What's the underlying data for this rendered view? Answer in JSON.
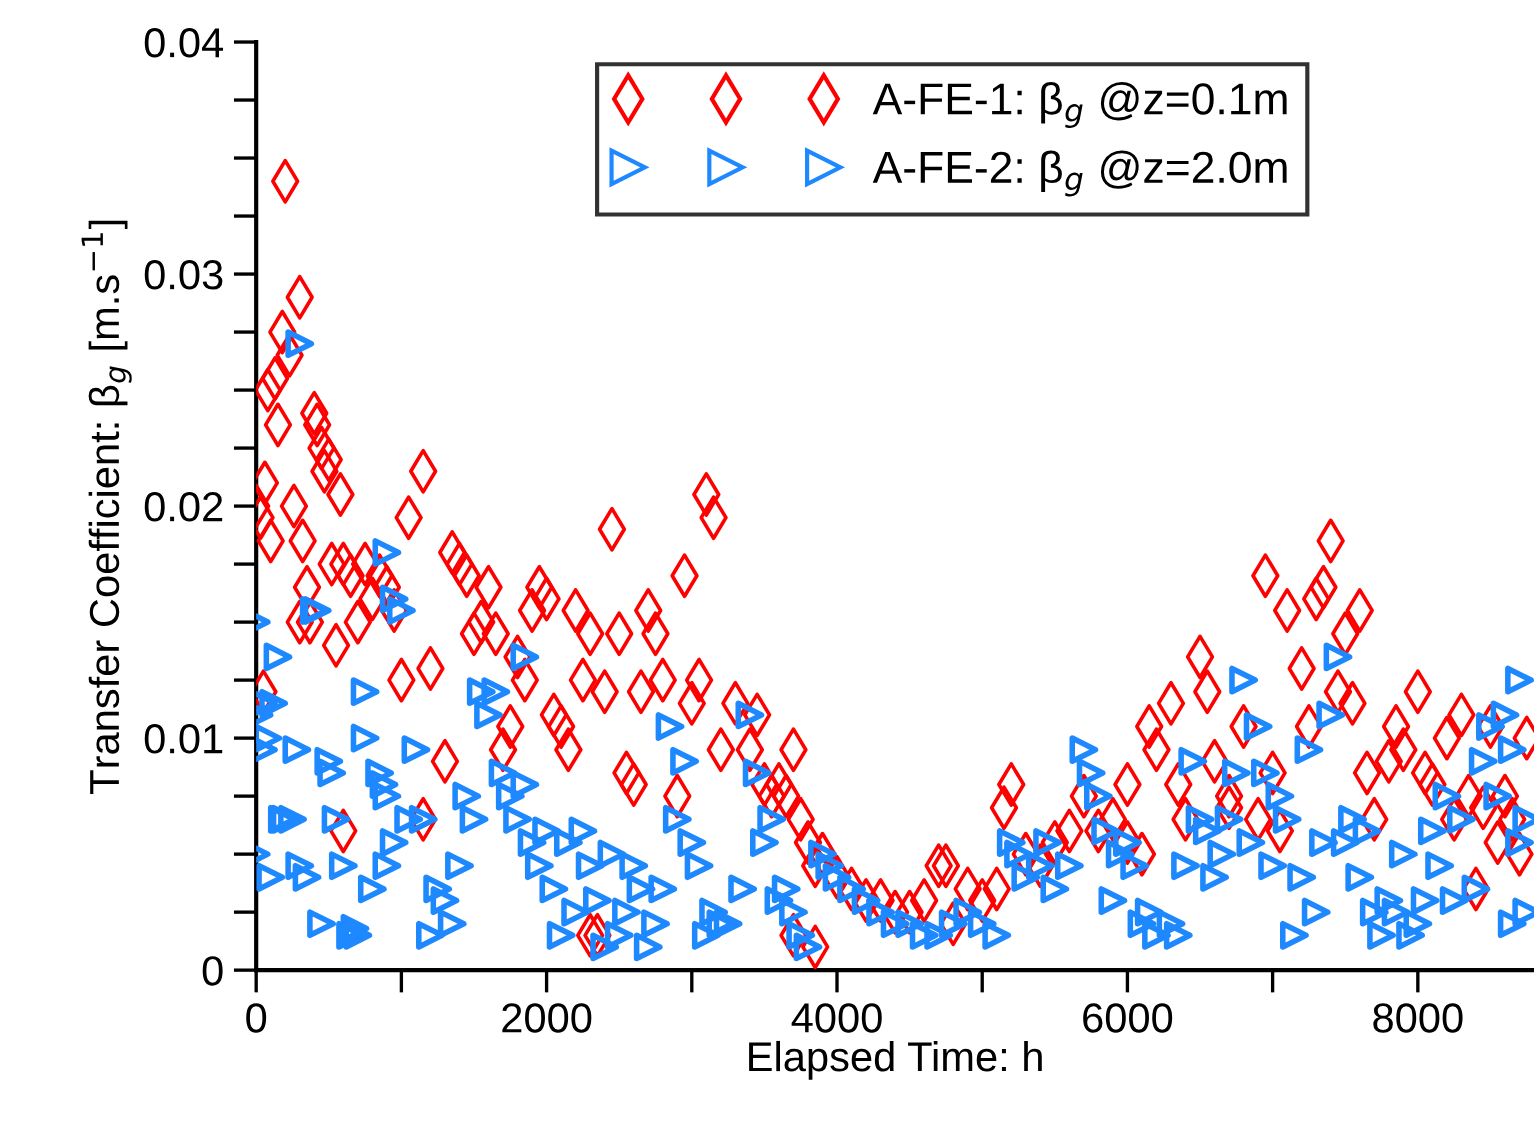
{
  "chart_data": {
    "type": "scatter",
    "xlabel": "Elapsed Time: h",
    "ylabel": "Transfer Coefficient: β$_{g}$ [m.s$^{−1}$]",
    "xlim": [
      0,
      8800
    ],
    "ylim": [
      0,
      0.04
    ],
    "xticks": [
      0,
      {
        "value": 1000,
        "label": null
      },
      2000,
      {
        "value": 3000,
        "label": null
      },
      4000,
      {
        "value": 5000,
        "label": null
      },
      6000,
      {
        "value": 7000,
        "label": null
      },
      8000
    ],
    "yticks": [
      0,
      {
        "value": 0.0025,
        "label": null
      },
      {
        "value": 0.005,
        "label": null
      },
      {
        "value": 0.0075,
        "label": null
      },
      0.01,
      {
        "value": 0.0125,
        "label": null
      },
      {
        "value": 0.015,
        "label": null
      },
      {
        "value": 0.0175,
        "label": null
      },
      0.02,
      {
        "value": 0.0225,
        "label": null
      },
      {
        "value": 0.025,
        "label": null
      },
      {
        "value": 0.0275,
        "label": null
      },
      0.03,
      {
        "value": 0.0325,
        "label": null
      },
      {
        "value": 0.035,
        "label": null
      },
      {
        "value": 0.0375,
        "label": null
      },
      0.04
    ],
    "grid": false,
    "legend": "top right",
    "series": [
      {
        "name": "A-FE-1: β$_{g}$ @z=0.1m",
        "color": "#ff0000",
        "marker": "diamond",
        "x": [
          0,
          30,
          60,
          80,
          100,
          130,
          150,
          180,
          200,
          230,
          260,
          300,
          320,
          350,
          370,
          400,
          420,
          450,
          470,
          500,
          520,
          550,
          580,
          600,
          650,
          700,
          750,
          800,
          850,
          900,
          950,
          1000,
          1050,
          1150,
          1200,
          1300,
          1350,
          1400,
          1450,
          1500,
          1550,
          1600,
          1650,
          1700,
          1750,
          1800,
          1850,
          1900,
          1950,
          2000,
          2050,
          2100,
          2150,
          2200,
          2250,
          2300,
          2400,
          2450,
          2500,
          2550,
          2600,
          2650,
          2700,
          2750,
          2800,
          2900,
          2950,
          3000,
          3050,
          3100,
          3150,
          3200,
          3300,
          3400,
          3450,
          3500,
          3550,
          3600,
          3650,
          3700,
          3750,
          3800,
          3850,
          3900,
          4000,
          4100,
          4200,
          4300,
          4400,
          4500,
          4600,
          4700,
          4750,
          4800,
          4900,
          5000,
          5100,
          5150,
          5200,
          5300,
          5400,
          5500,
          5600,
          5700,
          5800,
          5900,
          6000,
          6100,
          6150,
          6200,
          6300,
          6350,
          6400,
          6500,
          6550,
          6600,
          6700,
          6800,
          6900,
          6950,
          7000,
          7050,
          7100,
          7200,
          7250,
          7300,
          7350,
          7400,
          7450,
          7500,
          7550,
          7600,
          7650,
          7700,
          7800,
          7850,
          7900,
          8000,
          8050,
          8100,
          8200,
          8250,
          8300,
          8350,
          8400,
          8450,
          8500,
          8550,
          8600,
          8650,
          8700,
          8750,
          2350,
          3700,
          3850,
          2300,
          600,
          1150,
          6000,
          6700,
          300,
          50
        ],
        "values": [
          0.02,
          0.0195,
          0.021,
          0.025,
          0.0185,
          0.0255,
          0.0235,
          0.0275,
          0.034,
          0.0265,
          0.02,
          0.029,
          0.0185,
          0.0165,
          0.015,
          0.024,
          0.0235,
          0.0225,
          0.0215,
          0.022,
          0.0175,
          0.014,
          0.0205,
          0.0175,
          0.017,
          0.015,
          0.0175,
          0.016,
          0.017,
          0.0165,
          0.0155,
          0.0125,
          0.0195,
          0.0215,
          0.013,
          0.009,
          0.018,
          0.0175,
          0.017,
          0.0145,
          0.015,
          0.0165,
          0.0145,
          0.0095,
          0.0105,
          0.0135,
          0.0125,
          0.0155,
          0.0165,
          0.016,
          0.011,
          0.0105,
          0.0095,
          0.0155,
          0.0125,
          0.0145,
          0.012,
          0.019,
          0.0145,
          0.0085,
          0.008,
          0.012,
          0.0155,
          0.0145,
          0.0125,
          0.0075,
          0.017,
          0.0115,
          0.0125,
          0.0205,
          0.0195,
          0.0095,
          0.0115,
          0.0095,
          0.011,
          0.008,
          0.0075,
          0.008,
          0.0075,
          0.0095,
          0.0065,
          0.0055,
          0.0045,
          0.005,
          0.004,
          0.0035,
          0.003,
          0.003,
          0.0025,
          0.0025,
          0.003,
          0.0045,
          0.0045,
          0.002,
          0.0035,
          0.003,
          0.0035,
          0.007,
          0.008,
          0.005,
          0.0045,
          0.0055,
          0.006,
          0.0075,
          0.006,
          0.0065,
          0.008,
          0.005,
          0.0105,
          0.0095,
          0.0115,
          0.008,
          0.0065,
          0.0135,
          0.012,
          0.009,
          0.0075,
          0.0105,
          0.0065,
          0.017,
          0.0085,
          0.006,
          0.0155,
          0.013,
          0.0105,
          0.016,
          0.0165,
          0.0185,
          0.012,
          0.0145,
          0.0115,
          0.0155,
          0.0085,
          0.0065,
          0.009,
          0.0105,
          0.0095,
          0.012,
          0.0085,
          0.008,
          0.01,
          0.0065,
          0.011,
          0.0075,
          0.0035,
          0.007,
          0.0105,
          0.0055,
          0.0075,
          0.0065,
          0.005,
          0.01,
          0.0015,
          0.0015,
          0.001,
          0.0015,
          0.006,
          0.0065,
          0.0055,
          0.007,
          0.015,
          0.012
        ]
      },
      {
        "name": "A-FE-2: β$_{g}$ @z=2.0m",
        "color": "#1e88ff",
        "marker": "triangle",
        "x": [
          0,
          0,
          20,
          50,
          50,
          80,
          100,
          120,
          150,
          180,
          200,
          250,
          280,
          300,
          300,
          350,
          400,
          420,
          450,
          500,
          520,
          550,
          600,
          650,
          680,
          700,
          750,
          750,
          800,
          850,
          880,
          900,
          950,
          900,
          900,
          950,
          1000,
          1050,
          1100,
          1150,
          1200,
          1250,
          1300,
          1350,
          1400,
          1450,
          1500,
          1550,
          1600,
          1650,
          1700,
          1750,
          1800,
          1850,
          1850,
          1900,
          1950,
          2000,
          2050,
          2100,
          2150,
          2200,
          2250,
          2300,
          2350,
          2400,
          2450,
          2500,
          2550,
          2600,
          2650,
          2700,
          2750,
          2800,
          2850,
          2900,
          2950,
          3000,
          3050,
          3100,
          3150,
          3200,
          3250,
          3350,
          3400,
          3450,
          3500,
          3550,
          3600,
          3650,
          3700,
          3750,
          3800,
          3900,
          3950,
          4000,
          4100,
          4200,
          4300,
          4400,
          4500,
          4600,
          4700,
          4800,
          4900,
          5000,
          5100,
          5200,
          5250,
          5300,
          5400,
          5450,
          5500,
          5600,
          5700,
          5750,
          5800,
          5850,
          5900,
          5950,
          6000,
          6050,
          6100,
          6150,
          6200,
          6300,
          6350,
          6400,
          6450,
          6500,
          6550,
          6600,
          6650,
          6700,
          6750,
          6800,
          6850,
          6900,
          6950,
          7000,
          7050,
          7100,
          7150,
          7200,
          7250,
          7300,
          7350,
          7400,
          7450,
          7500,
          7550,
          7600,
          7650,
          7700,
          7750,
          7800,
          7850,
          7900,
          7950,
          8000,
          8050,
          8100,
          8150,
          8200,
          8250,
          8300,
          8400,
          8450,
          8500,
          8550,
          8600,
          8650,
          8650,
          8700,
          8700,
          8750,
          8750
        ],
        "values": [
          0.015,
          0.005,
          0.011,
          0.0115,
          0.0095,
          0.01,
          0.004,
          0.0115,
          0.0135,
          0.0065,
          0.0065,
          0.0065,
          0.0095,
          0.027,
          0.0045,
          0.004,
          0.0155,
          0.0155,
          0.002,
          0.009,
          0.0085,
          0.0065,
          0.0045,
          0.0015,
          0.0018,
          0.0015,
          0.012,
          0.01,
          0.0035,
          0.0085,
          0.008,
          0.0075,
          0.0055,
          0.0045,
          0.018,
          0.016,
          0.0155,
          0.0065,
          0.0095,
          0.0065,
          0.0015,
          0.0035,
          0.003,
          0.002,
          0.0045,
          0.0075,
          0.0065,
          0.012,
          0.011,
          0.012,
          0.0085,
          0.0075,
          0.0065,
          0.008,
          0.0135,
          0.0055,
          0.0045,
          0.006,
          0.0035,
          0.0015,
          0.0055,
          0.0025,
          0.006,
          0.0045,
          0.003,
          0.001,
          0.005,
          0.0015,
          0.0025,
          0.0045,
          0.0035,
          0.001,
          0.002,
          0.0035,
          0.0105,
          0.0065,
          0.009,
          0.0055,
          0.0045,
          0.0015,
          0.0025,
          0.002,
          0.002,
          0.0035,
          0.011,
          0.0085,
          0.0055,
          0.0065,
          0.003,
          0.0035,
          0.0025,
          0.0015,
          0.001,
          0.005,
          0.0045,
          0.004,
          0.0035,
          0.003,
          0.0025,
          0.002,
          0.002,
          0.0015,
          0.0015,
          0.002,
          0.0025,
          0.002,
          0.0015,
          0.0055,
          0.005,
          0.004,
          0.0045,
          0.0055,
          0.0035,
          0.0045,
          0.0095,
          0.0085,
          0.0075,
          0.006,
          0.003,
          0.005,
          0.0055,
          0.0045,
          0.002,
          0.0025,
          0.0015,
          0.002,
          0.0015,
          0.0045,
          0.009,
          0.0065,
          0.006,
          0.004,
          0.005,
          0.0065,
          0.0085,
          0.0125,
          0.0055,
          0.0105,
          0.0085,
          0.0045,
          0.0075,
          0.0065,
          0.0015,
          0.004,
          0.0095,
          0.0025,
          0.0055,
          0.011,
          0.0135,
          0.0055,
          0.0065,
          0.004,
          0.006,
          0.0025,
          0.0015,
          0.003,
          0.0025,
          0.005,
          0.0015,
          0.002,
          0.003,
          0.006,
          0.0045,
          0.0075,
          0.003,
          0.0065,
          0.0035,
          0.009,
          0.0105,
          0.0075,
          0.011,
          0.0095,
          0.002,
          0.0125,
          0.0055,
          0.0025,
          0.0065
        ]
      }
    ]
  }
}
